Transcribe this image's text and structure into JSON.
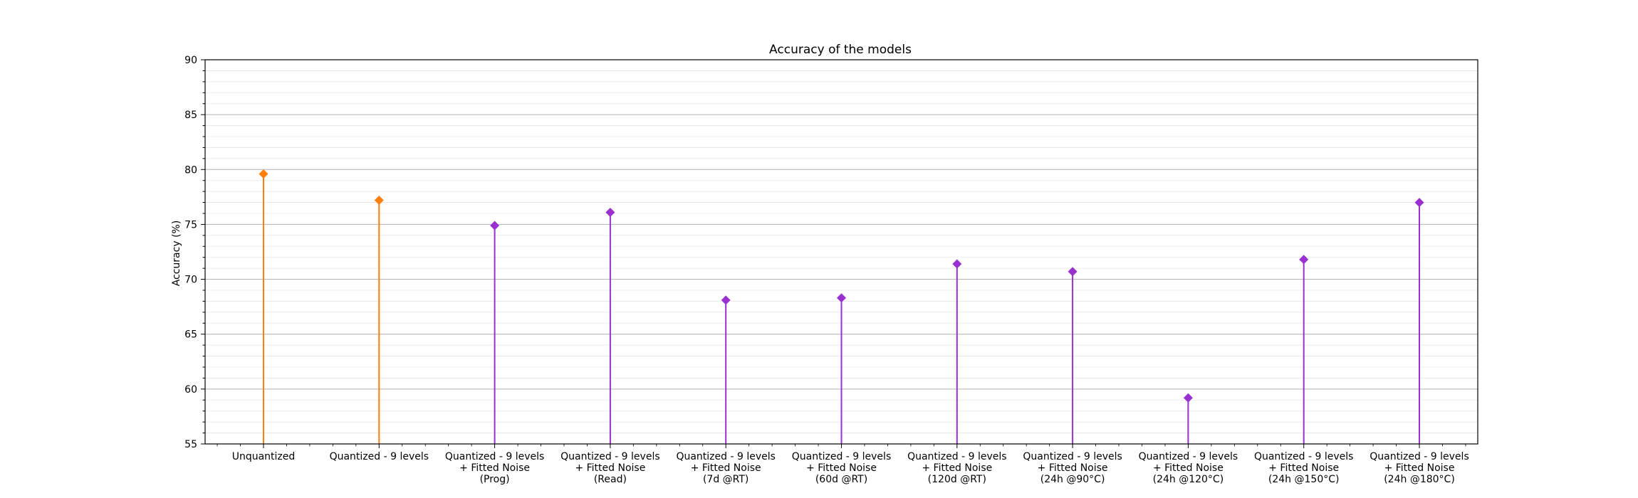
{
  "chart_data": {
    "type": "stem",
    "title": "Accuracy of the models",
    "xlabel": "",
    "ylabel": "Accuracy (%)",
    "ylim": [
      55,
      90
    ],
    "yticks": [
      55,
      60,
      65,
      70,
      75,
      80,
      85,
      90
    ],
    "grid": "horizontal",
    "categories": [
      [
        "Unquantized"
      ],
      [
        "Quantized - 9 levels"
      ],
      [
        "Quantized - 9 levels",
        "+ Fitted Noise",
        "(Prog)"
      ],
      [
        "Quantized - 9 levels",
        "+ Fitted Noise",
        "(Read)"
      ],
      [
        "Quantized - 9 levels",
        "+ Fitted Noise",
        "(7d @RT)"
      ],
      [
        "Quantized - 9 levels",
        "+ Fitted Noise",
        "(60d @RT)"
      ],
      [
        "Quantized - 9 levels",
        "+ Fitted Noise",
        "(120d @RT)"
      ],
      [
        "Quantized - 9 levels",
        "+ Fitted Noise",
        "(24h @90°C)"
      ],
      [
        "Quantized - 9 levels",
        "+ Fitted Noise",
        "(24h @120°C)"
      ],
      [
        "Quantized - 9 levels",
        "+ Fitted Noise",
        "(24h @150°C)"
      ],
      [
        "Quantized - 9 levels",
        "+ Fitted Noise",
        "(24h @180°C)"
      ]
    ],
    "values": [
      79.6,
      77.2,
      74.9,
      76.1,
      68.1,
      68.3,
      71.4,
      70.7,
      59.2,
      71.8,
      77.0
    ],
    "colors": [
      "#ff7f0e",
      "#ff7f0e",
      "#9b30d0",
      "#9b30d0",
      "#9b30d0",
      "#9b30d0",
      "#9b30d0",
      "#9b30d0",
      "#9b30d0",
      "#9b30d0",
      "#9b30d0"
    ]
  }
}
